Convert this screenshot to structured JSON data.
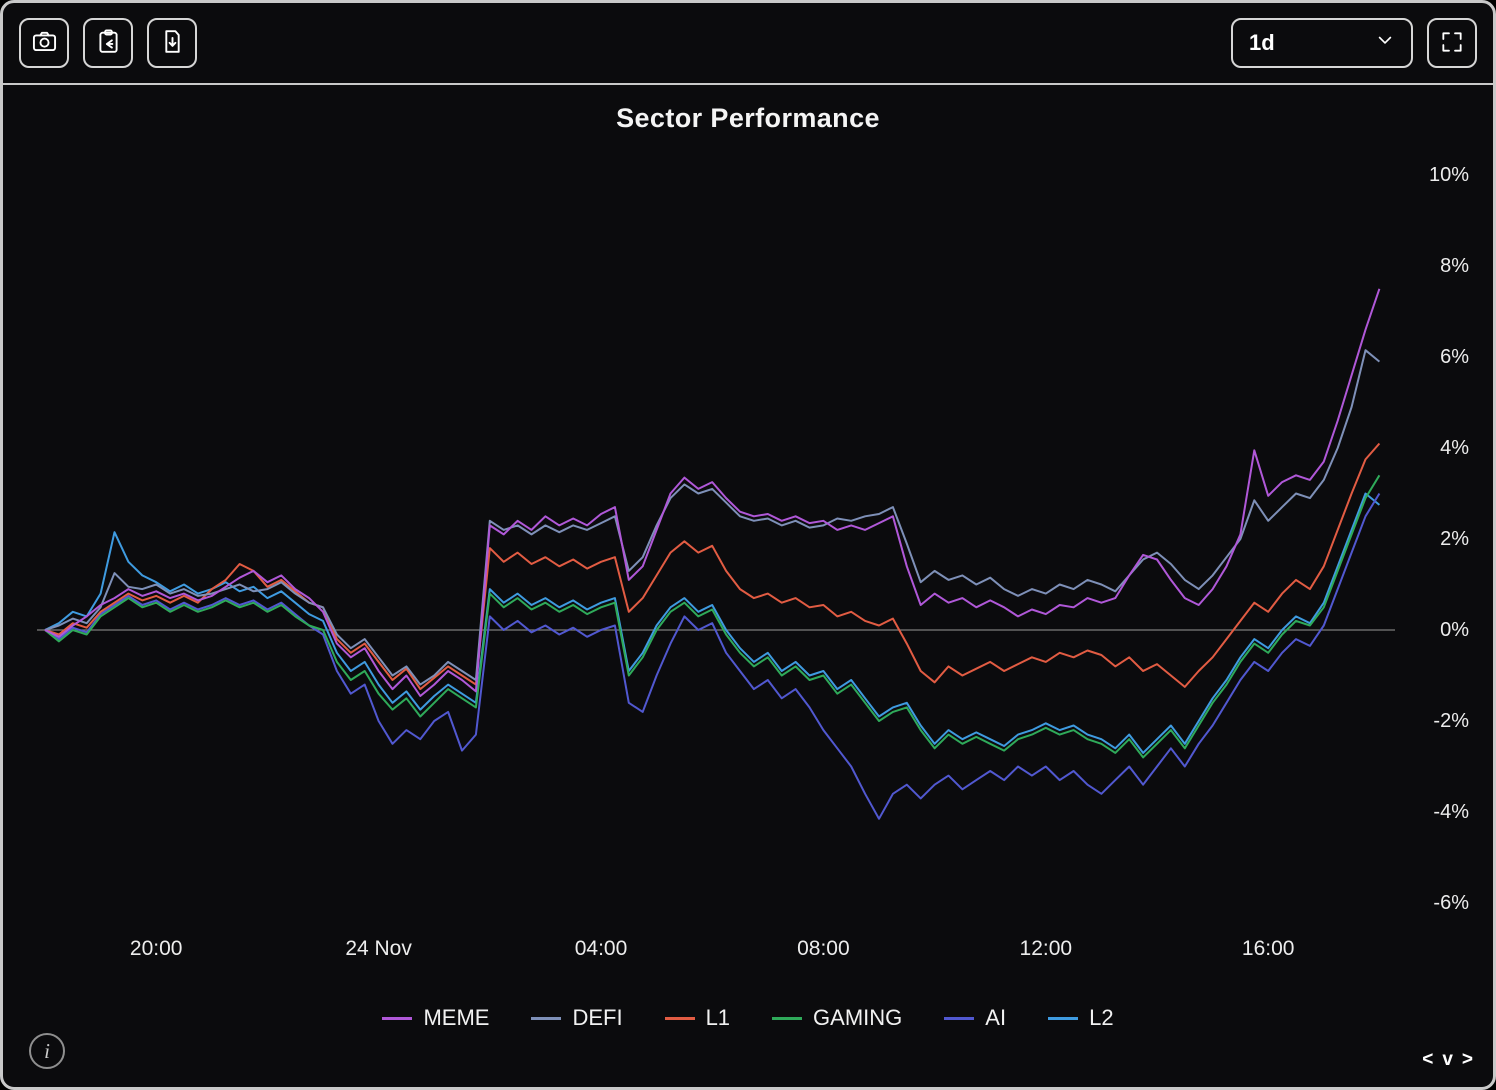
{
  "toolbar": {
    "camera_button": {
      "icon": "camera-icon"
    },
    "clipboard_button": {
      "icon": "clipboard-arrow-icon"
    },
    "export_button": {
      "icon": "file-download-icon"
    },
    "interval_select": {
      "value": "1d"
    },
    "fullscreen_button": {
      "icon": "fullscreen-icon"
    }
  },
  "footer": {
    "info_glyph": "i",
    "pager": {
      "prev": "<",
      "mid": "v",
      "next": ">"
    }
  },
  "chart_data": {
    "type": "line",
    "title": "Sector Performance",
    "xlabel": "",
    "ylabel": "",
    "unit": "%",
    "interval_minutes": 15,
    "grid": false,
    "zero_line": true,
    "legend_position": "bottom",
    "ylim": [
      -7,
      10.8
    ],
    "y_axis": {
      "ticks_percent": [
        10,
        8,
        6,
        4,
        2,
        0,
        -2,
        -4,
        -6
      ]
    },
    "x_axis": {
      "ticks": [
        {
          "label": "20:00",
          "hours_from_start": 2
        },
        {
          "label": "24 Nov",
          "hours_from_start": 6
        },
        {
          "label": "04:00",
          "hours_from_start": 10
        },
        {
          "label": "08:00",
          "hours_from_start": 14
        },
        {
          "label": "12:00",
          "hours_from_start": 18
        },
        {
          "label": "16:00",
          "hours_from_start": 22
        }
      ]
    },
    "series": [
      {
        "name": "MEME",
        "color": "#b058d8",
        "values": [
          0,
          -0.15,
          0.1,
          0.3,
          0.55,
          0.7,
          0.9,
          0.75,
          0.85,
          0.7,
          0.8,
          0.65,
          0.75,
          0.95,
          1.15,
          1.3,
          1.05,
          1.2,
          0.9,
          0.7,
          0.4,
          -0.3,
          -0.6,
          -0.4,
          -0.9,
          -1.3,
          -1.0,
          -1.45,
          -1.2,
          -0.9,
          -1.1,
          -1.35,
          2.3,
          2.1,
          2.4,
          2.2,
          2.5,
          2.3,
          2.45,
          2.3,
          2.55,
          2.7,
          1.1,
          1.4,
          2.2,
          3.0,
          3.35,
          3.1,
          3.25,
          2.9,
          2.6,
          2.5,
          2.55,
          2.4,
          2.5,
          2.35,
          2.4,
          2.2,
          2.3,
          2.2,
          2.35,
          2.5,
          1.4,
          0.55,
          0.8,
          0.6,
          0.7,
          0.5,
          0.65,
          0.5,
          0.3,
          0.45,
          0.35,
          0.55,
          0.5,
          0.7,
          0.6,
          0.7,
          1.2,
          1.65,
          1.55,
          1.1,
          0.7,
          0.55,
          0.9,
          1.4,
          2.1,
          3.95,
          2.95,
          3.25,
          3.4,
          3.3,
          3.7,
          4.6,
          5.6,
          6.6,
          7.5
        ]
      },
      {
        "name": "DEFI",
        "color": "#7e90b8",
        "values": [
          0,
          0.1,
          0.25,
          0.15,
          0.5,
          1.25,
          0.95,
          0.9,
          1.0,
          0.8,
          0.9,
          0.75,
          0.8,
          0.9,
          1.0,
          0.85,
          0.9,
          1.05,
          0.8,
          0.6,
          0.5,
          -0.1,
          -0.4,
          -0.2,
          -0.6,
          -1.0,
          -0.8,
          -1.2,
          -1.0,
          -0.7,
          -0.9,
          -1.1,
          2.4,
          2.2,
          2.3,
          2.1,
          2.3,
          2.15,
          2.3,
          2.2,
          2.35,
          2.5,
          1.3,
          1.6,
          2.3,
          2.9,
          3.2,
          3.0,
          3.1,
          2.8,
          2.5,
          2.4,
          2.45,
          2.3,
          2.4,
          2.25,
          2.3,
          2.45,
          2.4,
          2.5,
          2.55,
          2.7,
          1.9,
          1.05,
          1.3,
          1.1,
          1.2,
          1.0,
          1.15,
          0.9,
          0.75,
          0.9,
          0.8,
          1.0,
          0.9,
          1.1,
          1.0,
          0.85,
          1.2,
          1.55,
          1.7,
          1.45,
          1.1,
          0.9,
          1.2,
          1.6,
          2.0,
          2.85,
          2.4,
          2.7,
          3.0,
          2.9,
          3.3,
          4.0,
          4.9,
          6.15,
          5.9
        ]
      },
      {
        "name": "L1",
        "color": "#e25c43",
        "values": [
          0,
          -0.1,
          0.15,
          0.05,
          0.4,
          0.6,
          0.8,
          0.65,
          0.75,
          0.6,
          0.75,
          0.6,
          0.9,
          1.1,
          1.45,
          1.3,
          0.95,
          1.1,
          0.85,
          0.6,
          0.5,
          -0.2,
          -0.5,
          -0.3,
          -0.7,
          -1.1,
          -0.85,
          -1.3,
          -1.05,
          -0.8,
          -1.0,
          -1.2,
          1.8,
          1.5,
          1.7,
          1.45,
          1.6,
          1.4,
          1.55,
          1.35,
          1.5,
          1.6,
          0.4,
          0.7,
          1.2,
          1.7,
          1.95,
          1.7,
          1.85,
          1.3,
          0.9,
          0.7,
          0.8,
          0.6,
          0.7,
          0.5,
          0.55,
          0.3,
          0.4,
          0.2,
          0.1,
          0.25,
          -0.3,
          -0.9,
          -1.15,
          -0.8,
          -1.0,
          -0.85,
          -0.7,
          -0.9,
          -0.75,
          -0.6,
          -0.7,
          -0.5,
          -0.6,
          -0.45,
          -0.55,
          -0.8,
          -0.6,
          -0.9,
          -0.75,
          -1.0,
          -1.25,
          -0.9,
          -0.6,
          -0.2,
          0.2,
          0.6,
          0.4,
          0.8,
          1.1,
          0.9,
          1.4,
          2.2,
          3.0,
          3.75,
          4.1
        ]
      },
      {
        "name": "GAMING",
        "color": "#2faa5a",
        "values": [
          0,
          -0.25,
          0.0,
          -0.1,
          0.3,
          0.5,
          0.7,
          0.5,
          0.6,
          0.4,
          0.55,
          0.4,
          0.5,
          0.65,
          0.5,
          0.6,
          0.4,
          0.55,
          0.3,
          0.1,
          0.0,
          -0.7,
          -1.1,
          -0.9,
          -1.4,
          -1.75,
          -1.5,
          -1.9,
          -1.6,
          -1.3,
          -1.5,
          -1.7,
          0.8,
          0.5,
          0.7,
          0.45,
          0.6,
          0.4,
          0.55,
          0.35,
          0.5,
          0.6,
          -1.0,
          -0.6,
          0.0,
          0.4,
          0.6,
          0.3,
          0.45,
          -0.1,
          -0.5,
          -0.8,
          -0.6,
          -1.0,
          -0.8,
          -1.1,
          -1.0,
          -1.4,
          -1.2,
          -1.6,
          -2.0,
          -1.8,
          -1.7,
          -2.2,
          -2.6,
          -2.3,
          -2.5,
          -2.35,
          -2.5,
          -2.65,
          -2.4,
          -2.3,
          -2.15,
          -2.3,
          -2.2,
          -2.4,
          -2.5,
          -2.7,
          -2.4,
          -2.8,
          -2.5,
          -2.2,
          -2.6,
          -2.1,
          -1.6,
          -1.2,
          -0.7,
          -0.3,
          -0.5,
          -0.1,
          0.2,
          0.1,
          0.5,
          1.3,
          2.1,
          2.9,
          3.4
        ]
      },
      {
        "name": "AI",
        "color": "#5158d0",
        "values": [
          0,
          -0.2,
          0.05,
          -0.05,
          0.35,
          0.55,
          0.75,
          0.55,
          0.65,
          0.45,
          0.6,
          0.45,
          0.55,
          0.7,
          0.55,
          0.65,
          0.45,
          0.6,
          0.35,
          0.1,
          -0.1,
          -0.9,
          -1.4,
          -1.2,
          -2.0,
          -2.5,
          -2.2,
          -2.4,
          -2.0,
          -1.8,
          -2.65,
          -2.3,
          0.3,
          0.0,
          0.2,
          -0.05,
          0.1,
          -0.1,
          0.05,
          -0.15,
          0.0,
          0.1,
          -1.6,
          -1.8,
          -1.0,
          -0.3,
          0.3,
          0.0,
          0.15,
          -0.5,
          -0.9,
          -1.3,
          -1.1,
          -1.5,
          -1.3,
          -1.7,
          -2.2,
          -2.6,
          -3.0,
          -3.6,
          -4.15,
          -3.6,
          -3.4,
          -3.7,
          -3.4,
          -3.2,
          -3.5,
          -3.3,
          -3.1,
          -3.3,
          -3.0,
          -3.2,
          -3.0,
          -3.3,
          -3.1,
          -3.4,
          -3.6,
          -3.3,
          -3.0,
          -3.4,
          -3.0,
          -2.6,
          -3.0,
          -2.5,
          -2.1,
          -1.6,
          -1.1,
          -0.7,
          -0.9,
          -0.5,
          -0.2,
          -0.35,
          0.1,
          0.9,
          1.7,
          2.5,
          3.0
        ]
      },
      {
        "name": "L2",
        "color": "#3f9be0",
        "values": [
          0,
          0.15,
          0.4,
          0.3,
          0.8,
          2.15,
          1.5,
          1.2,
          1.05,
          0.85,
          1.0,
          0.8,
          0.9,
          1.05,
          0.85,
          0.95,
          0.7,
          0.85,
          0.6,
          0.35,
          0.2,
          -0.5,
          -0.9,
          -0.7,
          -1.2,
          -1.6,
          -1.35,
          -1.75,
          -1.45,
          -1.2,
          -1.4,
          -1.6,
          0.9,
          0.6,
          0.8,
          0.55,
          0.7,
          0.5,
          0.65,
          0.45,
          0.6,
          0.7,
          -0.9,
          -0.5,
          0.1,
          0.5,
          0.7,
          0.4,
          0.55,
          0.0,
          -0.4,
          -0.7,
          -0.5,
          -0.9,
          -0.7,
          -1.0,
          -0.9,
          -1.3,
          -1.1,
          -1.5,
          -1.9,
          -1.7,
          -1.6,
          -2.1,
          -2.5,
          -2.2,
          -2.4,
          -2.25,
          -2.4,
          -2.55,
          -2.3,
          -2.2,
          -2.05,
          -2.2,
          -2.1,
          -2.3,
          -2.4,
          -2.6,
          -2.3,
          -2.7,
          -2.4,
          -2.1,
          -2.5,
          -2.0,
          -1.5,
          -1.1,
          -0.6,
          -0.2,
          -0.4,
          0.0,
          0.3,
          0.15,
          0.6,
          1.4,
          2.2,
          3.0,
          2.75
        ]
      }
    ]
  }
}
